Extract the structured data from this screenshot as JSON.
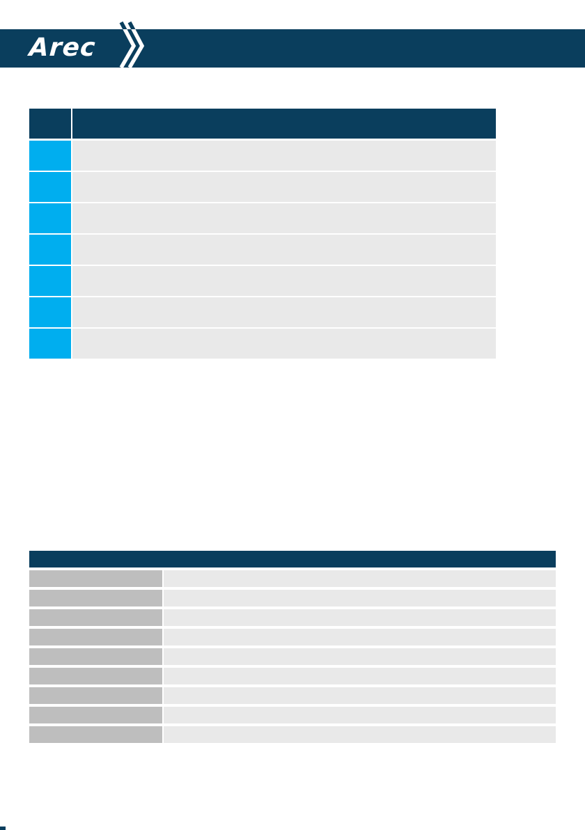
{
  "header": {
    "logo_text": "Arec"
  },
  "colors": {
    "navy": "#0a3e5d",
    "cyan": "#00aeef",
    "light_gray": "#e9e9e9",
    "mid_gray": "#bebebe"
  },
  "table1": {
    "header": {
      "number": "",
      "title": ""
    },
    "rows": [
      {
        "number": "",
        "text": ""
      },
      {
        "number": "",
        "text": ""
      },
      {
        "number": "",
        "text": ""
      },
      {
        "number": "",
        "text": ""
      },
      {
        "number": "",
        "text": ""
      },
      {
        "number": "",
        "text": ""
      },
      {
        "number": "",
        "text": ""
      }
    ]
  },
  "table2": {
    "header": {
      "title": ""
    },
    "rows": [
      {
        "label": "",
        "value": ""
      },
      {
        "label": "",
        "value": ""
      },
      {
        "label": "",
        "value": ""
      },
      {
        "label": "",
        "value": ""
      },
      {
        "label": "",
        "value": ""
      },
      {
        "label": "",
        "value": ""
      },
      {
        "label": "",
        "value": ""
      },
      {
        "label": "",
        "value": ""
      },
      {
        "label": "",
        "value": ""
      }
    ]
  }
}
